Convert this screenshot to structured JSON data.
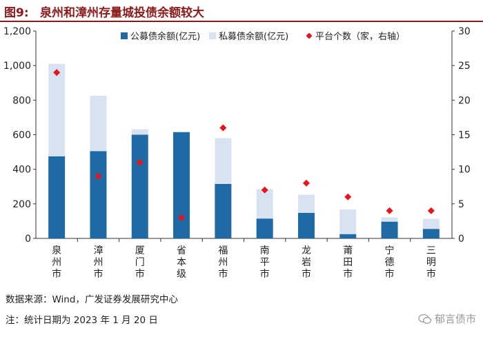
{
  "figure": {
    "label": "图9:",
    "title": "泉州和漳州存量城投债余额较大"
  },
  "chart_data": {
    "type": "bar",
    "stacked": true,
    "categories": [
      "泉州市",
      "漳州市",
      "厦门市",
      "省本级",
      "福州市",
      "南平市",
      "龙岩市",
      "莆田市",
      "宁德市",
      "三明市"
    ],
    "series": [
      {
        "name": "公募债余额(亿元)",
        "axis": "left",
        "color": "#1f6aa5",
        "values": [
          475,
          505,
          600,
          615,
          315,
          115,
          148,
          25,
          97,
          55
        ]
      },
      {
        "name": "私募债余额(亿元)",
        "axis": "left",
        "color": "#d7e3f1",
        "values": [
          535,
          320,
          32,
          0,
          265,
          170,
          105,
          143,
          25,
          58
        ]
      },
      {
        "name": "平台个数（家，右轴）",
        "axis": "right",
        "type": "scatter",
        "color": "#e8141a",
        "values": [
          24,
          9,
          11,
          3,
          16,
          7,
          8,
          6,
          4,
          4
        ]
      }
    ],
    "ylim": [
      0,
      1200
    ],
    "yticks": [
      "0",
      "200",
      "400",
      "600",
      "800",
      "1,000",
      "1,200"
    ],
    "y2lim": [
      0,
      30
    ],
    "y2ticks": [
      "0",
      "5",
      "10",
      "15",
      "20",
      "25",
      "30"
    ],
    "legend_position": "top-right"
  },
  "footer": {
    "source": "数据来源：Wind，广发证券发展研究中心",
    "note": "注：统计日期为 2023 年 1 月 20 日",
    "watermark": "郁言债市"
  }
}
